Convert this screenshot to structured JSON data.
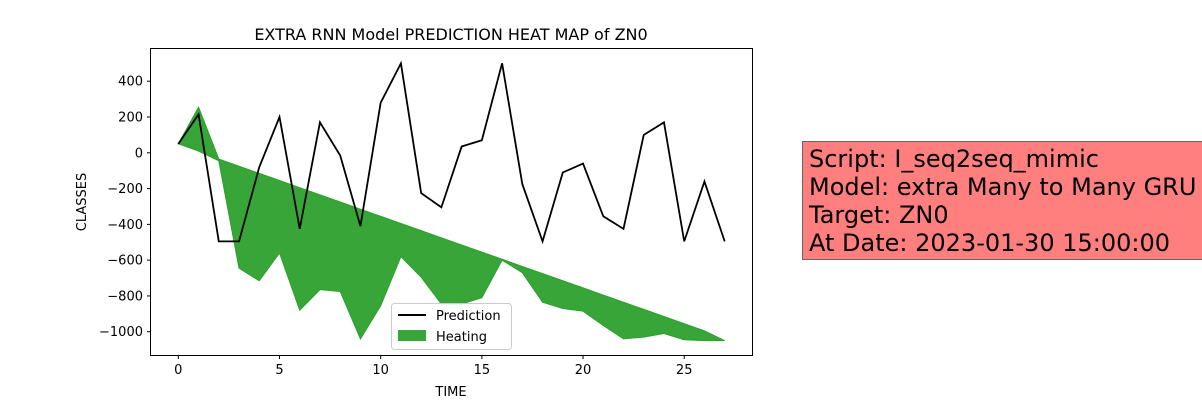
{
  "chart_data": {
    "type": "line",
    "title": "EXTRA RNN Model PREDICTION HEAT MAP of ZN0",
    "xlabel": "TIME",
    "ylabel": "CLASSES",
    "xlim": [
      -1.35,
      28.35
    ],
    "ylim": [
      -1130,
      580
    ],
    "xticks": [
      0,
      5,
      10,
      15,
      20,
      25
    ],
    "yticks": [
      -1000,
      -800,
      -600,
      -400,
      -200,
      0,
      200,
      400
    ],
    "grid": false,
    "legend_position": "lower center",
    "colors": {
      "prediction": "#000000",
      "heating": "#2ca02c"
    },
    "series": [
      {
        "name": "Prediction",
        "type": "line",
        "x": [
          0,
          1,
          2,
          3,
          4,
          5,
          6,
          7,
          8,
          9,
          10,
          11,
          12,
          13,
          14,
          15,
          16,
          17,
          18,
          19,
          20,
          21,
          22,
          23,
          24,
          25,
          26,
          27
        ],
        "values": [
          50,
          215,
          -495,
          -495,
          -80,
          200,
          -425,
          170,
          -15,
          -410,
          280,
          500,
          -225,
          -305,
          35,
          70,
          500,
          -175,
          -495,
          -110,
          -60,
          -355,
          -425,
          100,
          170,
          -495,
          -160,
          -495
        ]
      },
      {
        "name": "Heating",
        "type": "fill_between",
        "x": [
          0,
          1,
          2,
          3,
          4,
          5,
          6,
          7,
          8,
          9,
          10,
          11,
          12,
          13,
          14,
          15,
          16,
          17,
          18,
          19,
          20,
          21,
          22,
          23,
          24,
          25,
          26,
          27
        ],
        "upper": [
          50,
          255,
          -35,
          -75,
          -115,
          -155,
          -195,
          -235,
          -275,
          -315,
          -355,
          -395,
          -435,
          -475,
          -515,
          -555,
          -595,
          -635,
          -675,
          -715,
          -755,
          -795,
          -835,
          -875,
          -915,
          -955,
          -995,
          -1050
        ],
        "lower": [
          50,
          10,
          -45,
          -645,
          -715,
          -560,
          -880,
          -765,
          -775,
          -1040,
          -855,
          -580,
          -695,
          -845,
          -845,
          -810,
          -600,
          -670,
          -835,
          -870,
          -885,
          -965,
          -1040,
          -1030,
          -1010,
          -1045,
          -1050,
          -1050
        ]
      }
    ]
  },
  "infobox": {
    "lines": [
      "Script: I_seq2seq_mimic",
      "Model: extra Many to Many GRU",
      "Target: ZN0",
      "At Date: 2023-01-30 15:00:00"
    ]
  }
}
